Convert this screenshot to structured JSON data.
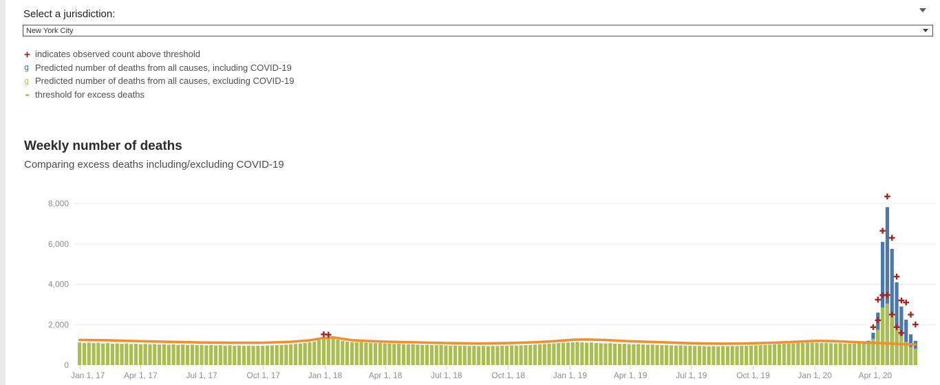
{
  "header": {
    "label": "Select a jurisdiction:",
    "dropdown_value": "New York City"
  },
  "legend": [
    {
      "marker": "+",
      "color": "#a8231d",
      "text": "indicates observed count above threshold"
    },
    {
      "marker": "g",
      "color": "#4e79a7",
      "text": "Predicted number of deaths from all causes, including COVID-19"
    },
    {
      "marker": "g",
      "color": "#b9c35c",
      "text": "Predicted number of deaths from all causes, excluding COVID-19"
    },
    {
      "marker": "-",
      "color": "#f28e2b",
      "text": "threshold for excess deaths"
    }
  ],
  "chart_data": {
    "type": "bar",
    "title": "Weekly number of deaths",
    "subtitle": "Comparing excess deaths including/excluding COVID-19",
    "xlabel": "",
    "ylabel": "",
    "ylim": [
      0,
      8400
    ],
    "grid": true,
    "legend_position": "top-left",
    "yticks": [
      0,
      2000,
      4000,
      6000,
      8000
    ],
    "ytick_labels": [
      "0",
      "2,000",
      "4,000",
      "6,000",
      "8,000"
    ],
    "xticks": [
      {
        "label": "Jan 1, 17",
        "week": 0.14
      },
      {
        "label": "Apr 1, 17",
        "week": 13.0
      },
      {
        "label": "Jul 1, 17",
        "week": 26.0
      },
      {
        "label": "Oct 1, 17",
        "week": 39.14
      },
      {
        "label": "Jan 1, 18",
        "week": 52.29
      },
      {
        "label": "Apr 1, 18",
        "week": 65.14
      },
      {
        "label": "Jul 1, 18",
        "week": 78.14
      },
      {
        "label": "Oct 1, 18",
        "week": 91.29
      },
      {
        "label": "Jan 1, 19",
        "week": 104.43
      },
      {
        "label": "Apr 1, 19",
        "week": 117.29
      },
      {
        "label": "Jul 1, 19",
        "week": 130.29
      },
      {
        "label": "Oct 1, 19",
        "week": 143.43
      },
      {
        "label": "Jan 1, 20",
        "week": 156.57
      },
      {
        "label": "Apr 1, 20",
        "week": 169.43
      }
    ],
    "series": [
      {
        "name": "Predicted number of deaths from all causes, including COVID-19",
        "color": "#4e79a7",
        "values": [
          1120,
          1095,
          1110,
          1085,
          1100,
          1070,
          1088,
          1060,
          1075,
          1052,
          1066,
          1045,
          1058,
          1035,
          1048,
          1025,
          1040,
          1018,
          1030,
          1008,
          1022,
          1000,
          1015,
          995,
          1008,
          988,
          1000,
          980,
          992,
          972,
          985,
          965,
          978,
          958,
          970,
          952,
          965,
          948,
          960,
          955,
          968,
          975,
          988,
          995,
          1010,
          1025,
          1045,
          1068,
          1092,
          1120,
          1160,
          1235,
          1320,
          1385,
          1330,
          1258,
          1195,
          1160,
          1142,
          1125,
          1135,
          1112,
          1098,
          1085,
          1092,
          1072,
          1060,
          1048,
          1055,
          1035,
          1025,
          1032,
          1012,
          1002,
          1008,
          990,
          982,
          988,
          970,
          960,
          968,
          950,
          958,
          942,
          952,
          938,
          948,
          935,
          945,
          940,
          952,
          958,
          970,
          965,
          978,
          988,
          1000,
          1012,
          1028,
          1042,
          1058,
          1072,
          1088,
          1102,
          1115,
          1128,
          1142,
          1125,
          1108,
          1118,
          1095,
          1082,
          1072,
          1085,
          1062,
          1052,
          1058,
          1040,
          1030,
          1038,
          1018,
          1008,
          1015,
          995,
          988,
          995,
          975,
          968,
          975,
          958,
          950,
          942,
          948,
          935,
          928,
          938,
          930,
          942,
          935,
          945,
          940,
          952,
          958,
          965,
          975,
          985,
          995,
          1008,
          1022,
          1038,
          1052,
          1065,
          1078,
          1088,
          1095,
          1105,
          1112,
          1105,
          1092,
          1098,
          1082,
          1072,
          1078,
          1062,
          1055,
          1060,
          1078,
          1105,
          1205,
          1600,
          2600,
          6100,
          7820,
          5750,
          4100,
          2900,
          2250,
          1520,
          1200
        ]
      },
      {
        "name": "Predicted number of deaths from all causes, excluding COVID-19",
        "color": "#a9bd51",
        "values": [
          1120,
          1095,
          1110,
          1085,
          1100,
          1070,
          1088,
          1060,
          1075,
          1052,
          1066,
          1045,
          1058,
          1035,
          1048,
          1025,
          1040,
          1018,
          1030,
          1008,
          1022,
          1000,
          1015,
          995,
          1008,
          988,
          1000,
          980,
          992,
          972,
          985,
          965,
          978,
          958,
          970,
          952,
          965,
          948,
          960,
          955,
          968,
          975,
          988,
          995,
          1010,
          1025,
          1045,
          1068,
          1092,
          1120,
          1160,
          1235,
          1320,
          1385,
          1330,
          1258,
          1195,
          1160,
          1142,
          1125,
          1135,
          1112,
          1098,
          1085,
          1092,
          1072,
          1060,
          1048,
          1055,
          1035,
          1025,
          1032,
          1012,
          1002,
          1008,
          990,
          982,
          988,
          970,
          960,
          968,
          950,
          958,
          942,
          952,
          938,
          948,
          935,
          945,
          940,
          952,
          958,
          970,
          965,
          978,
          988,
          1000,
          1012,
          1028,
          1042,
          1058,
          1072,
          1088,
          1102,
          1115,
          1128,
          1142,
          1125,
          1108,
          1118,
          1095,
          1082,
          1072,
          1085,
          1062,
          1052,
          1058,
          1040,
          1030,
          1038,
          1018,
          1008,
          1015,
          995,
          988,
          995,
          975,
          968,
          975,
          958,
          950,
          942,
          948,
          935,
          928,
          938,
          930,
          942,
          935,
          945,
          940,
          952,
          958,
          965,
          975,
          985,
          995,
          1008,
          1022,
          1038,
          1052,
          1065,
          1078,
          1088,
          1095,
          1105,
          1112,
          1105,
          1092,
          1098,
          1082,
          1072,
          1078,
          1062,
          1055,
          1060,
          1078,
          1105,
          1130,
          1300,
          1750,
          2850,
          3050,
          2500,
          1850,
          1450,
          1150,
          900,
          820
        ]
      }
    ],
    "threshold": {
      "name": "threshold for excess deaths",
      "color": "#f28e2b",
      "anchors": [
        [
          0,
          1245
        ],
        [
          6,
          1228
        ],
        [
          13,
          1180
        ],
        [
          20,
          1148
        ],
        [
          26,
          1118
        ],
        [
          33,
          1102
        ],
        [
          39,
          1108
        ],
        [
          45,
          1150
        ],
        [
          49,
          1225
        ],
        [
          52,
          1345
        ],
        [
          54,
          1372
        ],
        [
          56,
          1300
        ],
        [
          58,
          1232
        ],
        [
          62,
          1185
        ],
        [
          65,
          1160
        ],
        [
          72,
          1122
        ],
        [
          78,
          1088
        ],
        [
          85,
          1068
        ],
        [
          91,
          1085
        ],
        [
          97,
          1130
        ],
        [
          101,
          1180
        ],
        [
          105,
          1252
        ],
        [
          108,
          1268
        ],
        [
          112,
          1238
        ],
        [
          117,
          1182
        ],
        [
          124,
          1130
        ],
        [
          130,
          1082
        ],
        [
          137,
          1060
        ],
        [
          143,
          1075
        ],
        [
          149,
          1118
        ],
        [
          154,
          1168
        ],
        [
          157,
          1198
        ],
        [
          161,
          1180
        ],
        [
          165,
          1142
        ],
        [
          169,
          1100
        ],
        [
          172,
          1068
        ],
        [
          175,
          1040
        ],
        [
          178,
          1020
        ]
      ]
    },
    "observed_above_threshold": {
      "color": "#a8231d",
      "points": [
        [
          52,
          1520
        ],
        [
          53,
          1505
        ],
        [
          169,
          1880
        ],
        [
          170,
          2220
        ],
        [
          170,
          3240
        ],
        [
          171,
          3460
        ],
        [
          171,
          6650
        ],
        [
          172,
          3470
        ],
        [
          172,
          8350
        ],
        [
          173,
          2500
        ],
        [
          173,
          6300
        ],
        [
          174,
          1880
        ],
        [
          174,
          4380
        ],
        [
          175,
          1590
        ],
        [
          175,
          3200
        ],
        [
          176,
          3100
        ],
        [
          177,
          2500
        ],
        [
          178,
          2010
        ]
      ]
    }
  }
}
